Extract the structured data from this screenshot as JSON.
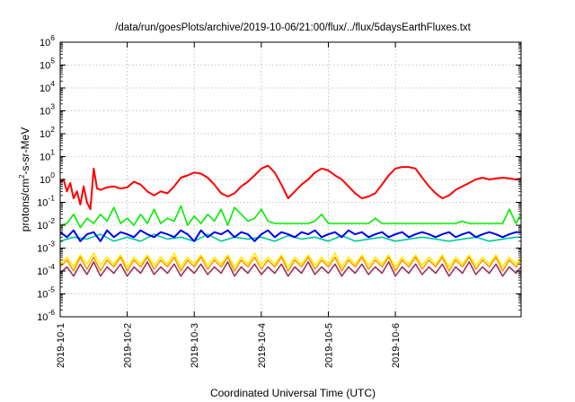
{
  "chart_data": {
    "type": "line",
    "title": "/data/run/goesPlots/archive/2019-10-06/21:00/flux/../flux/5daysEarthFluxes.txt",
    "xlabel": "Coordinated Universal Time (UTC)",
    "ylabel": {
      "base": "protons/cm",
      "sup": "2",
      "rest": "-s-sr-MeV"
    },
    "x_range": [
      "2019-10-01",
      "2019-10-06T21:00"
    ],
    "x_ticks": [
      "2019-10-1",
      "2019-10-2",
      "2019-10-3",
      "2019-10-4",
      "2019-10-5",
      "2019-10-6"
    ],
    "y_scale": "log",
    "ylim": [
      1e-06,
      1000000.0
    ],
    "y_ticks": [
      {
        "base": "10",
        "exp": "-6"
      },
      {
        "base": "10",
        "exp": "-5"
      },
      {
        "base": "10",
        "exp": "-4"
      },
      {
        "base": "10",
        "exp": "-3"
      },
      {
        "base": "10",
        "exp": "-2"
      },
      {
        "base": "10",
        "exp": "-1"
      },
      {
        "base": "10",
        "exp": "0"
      },
      {
        "base": "10",
        "exp": "1"
      },
      {
        "base": "10",
        "exp": "2"
      },
      {
        "base": "10",
        "exp": "3"
      },
      {
        "base": "10",
        "exp": "4"
      },
      {
        "base": "10",
        "exp": "5"
      },
      {
        "base": "10",
        "exp": "6"
      }
    ],
    "grid": true,
    "series": [
      {
        "color": "#ff0000",
        "x": [
          0,
          0.05,
          0.1,
          0.15,
          0.2,
          0.25,
          0.3,
          0.35,
          0.4,
          0.45,
          0.5,
          0.55,
          0.6,
          0.7,
          0.8,
          0.9,
          1.0,
          1.1,
          1.2,
          1.3,
          1.4,
          1.5,
          1.6,
          1.7,
          1.8,
          1.9,
          2.0,
          2.1,
          2.2,
          2.3,
          2.4,
          2.5,
          2.6,
          2.7,
          2.8,
          2.9,
          3.0,
          3.1,
          3.2,
          3.3,
          3.4,
          3.5,
          3.6,
          3.7,
          3.8,
          3.9,
          4.0,
          4.1,
          4.2,
          4.3,
          4.4,
          4.5,
          4.6,
          4.7,
          4.8,
          4.9,
          5.0,
          5.1,
          5.2,
          5.3,
          5.4,
          5.5,
          5.6,
          5.7,
          5.8,
          5.9,
          6.0,
          6.1,
          6.2,
          6.3,
          6.4,
          6.5,
          6.6,
          6.7,
          6.8,
          6.875
        ],
        "y": [
          0.8,
          1.0,
          0.3,
          0.7,
          0.15,
          0.3,
          0.08,
          0.5,
          0.1,
          0.05,
          3.0,
          0.4,
          0.35,
          0.45,
          0.5,
          0.4,
          0.45,
          0.8,
          0.6,
          0.3,
          0.2,
          0.3,
          0.25,
          0.5,
          1.2,
          1.5,
          2.0,
          1.8,
          1.2,
          0.6,
          0.25,
          0.18,
          0.25,
          0.5,
          0.8,
          1.5,
          3.0,
          4.0,
          2.0,
          0.6,
          0.15,
          0.3,
          0.6,
          1.0,
          2.0,
          3.0,
          2.5,
          1.5,
          1.0,
          0.5,
          0.25,
          0.15,
          0.18,
          0.25,
          0.6,
          1.5,
          3.0,
          3.5,
          3.5,
          3.0,
          1.2,
          0.5,
          0.25,
          0.15,
          0.2,
          0.35,
          0.5,
          0.7,
          1.0,
          1.2,
          1.0,
          1.1,
          1.2,
          1.1,
          1.0,
          1.1
        ]
      },
      {
        "color": "#00ee00",
        "x": [
          0,
          0.1,
          0.2,
          0.3,
          0.4,
          0.5,
          0.6,
          0.7,
          0.8,
          0.9,
          1.0,
          1.1,
          1.2,
          1.3,
          1.4,
          1.5,
          1.6,
          1.7,
          1.8,
          1.9,
          2.0,
          2.1,
          2.2,
          2.3,
          2.4,
          2.5,
          2.6,
          2.7,
          2.8,
          2.9,
          3.0,
          3.1,
          3.2,
          3.3,
          3.4,
          3.5,
          3.6,
          3.7,
          3.8,
          3.9,
          4.0,
          4.1,
          4.2,
          4.3,
          4.4,
          4.5,
          4.6,
          4.7,
          4.8,
          4.9,
          5.0,
          5.1,
          5.2,
          5.3,
          5.4,
          5.5,
          5.6,
          5.7,
          5.8,
          5.9,
          6.0,
          6.1,
          6.2,
          6.3,
          6.4,
          6.5,
          6.6,
          6.7,
          6.8,
          6.875
        ],
        "y": [
          0.01,
          0.012,
          0.03,
          0.008,
          0.02,
          0.012,
          0.03,
          0.015,
          0.06,
          0.012,
          0.02,
          0.01,
          0.03,
          0.012,
          0.05,
          0.012,
          0.02,
          0.015,
          0.07,
          0.01,
          0.025,
          0.012,
          0.03,
          0.015,
          0.05,
          0.01,
          0.06,
          0.03,
          0.015,
          0.02,
          0.05,
          0.015,
          0.012,
          0.012,
          0.012,
          0.012,
          0.012,
          0.012,
          0.015,
          0.03,
          0.012,
          0.012,
          0.012,
          0.012,
          0.012,
          0.012,
          0.012,
          0.02,
          0.012,
          0.012,
          0.012,
          0.012,
          0.012,
          0.012,
          0.012,
          0.012,
          0.012,
          0.012,
          0.012,
          0.012,
          0.015,
          0.012,
          0.012,
          0.012,
          0.012,
          0.012,
          0.012,
          0.05,
          0.012,
          0.03
        ]
      },
      {
        "color": "#00cc99",
        "x": [
          0,
          0.2,
          0.4,
          0.6,
          0.8,
          1.0,
          1.2,
          1.4,
          1.6,
          1.8,
          2.0,
          2.2,
          2.4,
          2.6,
          2.8,
          3.0,
          3.2,
          3.4,
          3.6,
          3.8,
          4.0,
          4.2,
          4.4,
          4.6,
          4.8,
          5.0,
          5.2,
          5.4,
          5.6,
          5.8,
          6.0,
          6.2,
          6.4,
          6.6,
          6.8,
          6.875
        ],
        "y": [
          0.002,
          0.003,
          0.0025,
          0.004,
          0.002,
          0.003,
          0.002,
          0.004,
          0.0025,
          0.003,
          0.002,
          0.004,
          0.002,
          0.003,
          0.0025,
          0.003,
          0.002,
          0.0035,
          0.0025,
          0.003,
          0.002,
          0.0035,
          0.002,
          0.0025,
          0.003,
          0.002,
          0.0025,
          0.003,
          0.0025,
          0.002,
          0.0025,
          0.003,
          0.002,
          0.0025,
          0.003,
          0.003
        ]
      },
      {
        "color": "#0000ee",
        "x": [
          0,
          0.1,
          0.2,
          0.3,
          0.4,
          0.5,
          0.6,
          0.7,
          0.8,
          0.9,
          1.0,
          1.1,
          1.2,
          1.3,
          1.4,
          1.5,
          1.6,
          1.7,
          1.8,
          1.9,
          2.0,
          2.1,
          2.2,
          2.3,
          2.4,
          2.5,
          2.6,
          2.7,
          2.8,
          2.9,
          3.0,
          3.1,
          3.2,
          3.3,
          3.4,
          3.5,
          3.6,
          3.7,
          3.8,
          3.9,
          4.0,
          4.1,
          4.2,
          4.3,
          4.4,
          4.5,
          4.6,
          4.7,
          4.8,
          4.9,
          5.0,
          5.1,
          5.2,
          5.3,
          5.4,
          5.5,
          5.6,
          5.7,
          5.8,
          5.9,
          6.0,
          6.1,
          6.2,
          6.3,
          6.4,
          6.5,
          6.6,
          6.7,
          6.8,
          6.875
        ],
        "y": [
          0.005,
          0.003,
          0.006,
          0.002,
          0.004,
          0.005,
          0.002,
          0.006,
          0.003,
          0.005,
          0.004,
          0.003,
          0.006,
          0.004,
          0.003,
          0.005,
          0.004,
          0.003,
          0.006,
          0.004,
          0.002,
          0.006,
          0.003,
          0.005,
          0.004,
          0.006,
          0.003,
          0.005,
          0.004,
          0.002,
          0.004,
          0.006,
          0.003,
          0.005,
          0.004,
          0.003,
          0.005,
          0.004,
          0.006,
          0.003,
          0.004,
          0.005,
          0.003,
          0.006,
          0.004,
          0.005,
          0.003,
          0.004,
          0.005,
          0.003,
          0.004,
          0.005,
          0.003,
          0.004,
          0.005,
          0.004,
          0.003,
          0.004,
          0.005,
          0.003,
          0.004,
          0.005,
          0.003,
          0.004,
          0.005,
          0.004,
          0.003,
          0.004,
          0.005,
          0.005
        ]
      },
      {
        "color": "#ffee00",
        "x": [
          0,
          0.1,
          0.2,
          0.3,
          0.4,
          0.5,
          0.6,
          0.7,
          0.8,
          0.9,
          1.0,
          1.1,
          1.2,
          1.3,
          1.4,
          1.5,
          1.6,
          1.7,
          1.8,
          1.9,
          2.0,
          2.1,
          2.2,
          2.3,
          2.4,
          2.5,
          2.6,
          2.7,
          2.8,
          2.9,
          3.0,
          3.1,
          3.2,
          3.3,
          3.4,
          3.5,
          3.6,
          3.7,
          3.8,
          3.9,
          4.0,
          4.1,
          4.2,
          4.3,
          4.4,
          4.5,
          4.6,
          4.7,
          4.8,
          4.9,
          5.0,
          5.1,
          5.2,
          5.3,
          5.4,
          5.5,
          5.6,
          5.7,
          5.8,
          5.9,
          6.0,
          6.1,
          6.2,
          6.3,
          6.4,
          6.5,
          6.6,
          6.7,
          6.8,
          6.875
        ],
        "y": [
          0.0002,
          0.0004,
          0.00015,
          0.0005,
          0.0002,
          0.0006,
          0.00018,
          0.0004,
          0.0002,
          0.0005,
          0.00015,
          0.0004,
          0.0002,
          0.0005,
          0.00018,
          0.0004,
          0.0002,
          0.0006,
          0.00015,
          0.0004,
          0.0002,
          0.0005,
          0.00018,
          0.0004,
          0.0002,
          0.0005,
          0.00015,
          0.0004,
          0.0002,
          0.0006,
          0.00018,
          0.0004,
          0.0002,
          0.0005,
          0.00015,
          0.0004,
          0.0002,
          0.0005,
          0.00018,
          0.0004,
          0.0002,
          0.0006,
          0.00015,
          0.0004,
          0.0002,
          0.0005,
          0.00018,
          0.0004,
          0.0002,
          0.0005,
          0.00015,
          0.0004,
          0.0002,
          0.0005,
          0.00018,
          0.0004,
          0.0002,
          0.0005,
          0.00015,
          0.0004,
          0.0002,
          0.0005,
          0.00018,
          0.0004,
          0.0002,
          0.0005,
          0.00015,
          0.0004,
          0.0002,
          0.0004
        ]
      },
      {
        "color": "#ff9900",
        "x": [
          0,
          0.1,
          0.2,
          0.3,
          0.4,
          0.5,
          0.6,
          0.7,
          0.8,
          0.9,
          1.0,
          1.1,
          1.2,
          1.3,
          1.4,
          1.5,
          1.6,
          1.7,
          1.8,
          1.9,
          2.0,
          2.1,
          2.2,
          2.3,
          2.4,
          2.5,
          2.6,
          2.7,
          2.8,
          2.9,
          3.0,
          3.1,
          3.2,
          3.3,
          3.4,
          3.5,
          3.6,
          3.7,
          3.8,
          3.9,
          4.0,
          4.1,
          4.2,
          4.3,
          4.4,
          4.5,
          4.6,
          4.7,
          4.8,
          4.9,
          5.0,
          5.1,
          5.2,
          5.3,
          5.4,
          5.5,
          5.6,
          5.7,
          5.8,
          5.9,
          6.0,
          6.1,
          6.2,
          6.3,
          6.4,
          6.5,
          6.6,
          6.7,
          6.8,
          6.875
        ],
        "y": [
          0.00015,
          0.0003,
          0.0001,
          0.0004,
          0.00012,
          0.0004,
          0.0001,
          0.0003,
          0.00015,
          0.0004,
          0.0001,
          0.0003,
          0.00015,
          0.0004,
          0.00012,
          0.0003,
          0.00015,
          0.0004,
          0.0001,
          0.0003,
          0.00015,
          0.0004,
          0.00012,
          0.0003,
          0.00015,
          0.0004,
          0.0001,
          0.0003,
          0.00015,
          0.0004,
          0.00012,
          0.0003,
          0.00015,
          0.0004,
          0.0001,
          0.0003,
          0.00015,
          0.0004,
          0.00012,
          0.0003,
          0.00015,
          0.0004,
          0.0001,
          0.0003,
          0.00015,
          0.0004,
          0.00012,
          0.0003,
          0.00015,
          0.0004,
          0.0001,
          0.0003,
          0.00015,
          0.0004,
          0.00012,
          0.0003,
          0.00015,
          0.0004,
          0.0001,
          0.0003,
          0.00015,
          0.0004,
          0.00012,
          0.0003,
          0.00015,
          0.0004,
          0.0001,
          0.0003,
          0.00015,
          0.0003
        ]
      },
      {
        "color": "#993366",
        "x": [
          0,
          0.1,
          0.2,
          0.3,
          0.4,
          0.5,
          0.6,
          0.7,
          0.8,
          0.9,
          1.0,
          1.1,
          1.2,
          1.3,
          1.4,
          1.5,
          1.6,
          1.7,
          1.8,
          1.9,
          2.0,
          2.1,
          2.2,
          2.3,
          2.4,
          2.5,
          2.6,
          2.7,
          2.8,
          2.9,
          3.0,
          3.1,
          3.2,
          3.3,
          3.4,
          3.5,
          3.6,
          3.7,
          3.8,
          3.9,
          4.0,
          4.1,
          4.2,
          4.3,
          4.4,
          4.5,
          4.6,
          4.7,
          4.8,
          4.9,
          5.0,
          5.1,
          5.2,
          5.3,
          5.4,
          5.5,
          5.6,
          5.7,
          5.8,
          5.9,
          6.0,
          6.1,
          6.2,
          6.3,
          6.4,
          6.5,
          6.6,
          6.7,
          6.8,
          6.875
        ],
        "y": [
          8e-05,
          0.00015,
          6e-05,
          0.0002,
          7e-05,
          0.00025,
          6e-05,
          0.00015,
          8e-05,
          0.0002,
          6e-05,
          0.00015,
          8e-05,
          0.00025,
          7e-05,
          0.00015,
          8e-05,
          0.0002,
          6e-05,
          0.00015,
          8e-05,
          0.0002,
          7e-05,
          0.00015,
          8e-05,
          0.00025,
          6e-05,
          0.00015,
          8e-05,
          0.0002,
          7e-05,
          0.00015,
          8e-05,
          0.0002,
          6e-05,
          0.00015,
          8e-05,
          0.00025,
          7e-05,
          0.00015,
          8e-05,
          0.0002,
          6e-05,
          0.00015,
          8e-05,
          0.0002,
          7e-05,
          0.00015,
          8e-05,
          0.00025,
          6e-05,
          0.00015,
          8e-05,
          0.0002,
          7e-05,
          0.00015,
          8e-05,
          0.0002,
          6e-05,
          0.00015,
          8e-05,
          0.00025,
          7e-05,
          0.00015,
          8e-05,
          0.0002,
          6e-05,
          0.00015,
          8e-05,
          0.00015
        ]
      }
    ]
  }
}
